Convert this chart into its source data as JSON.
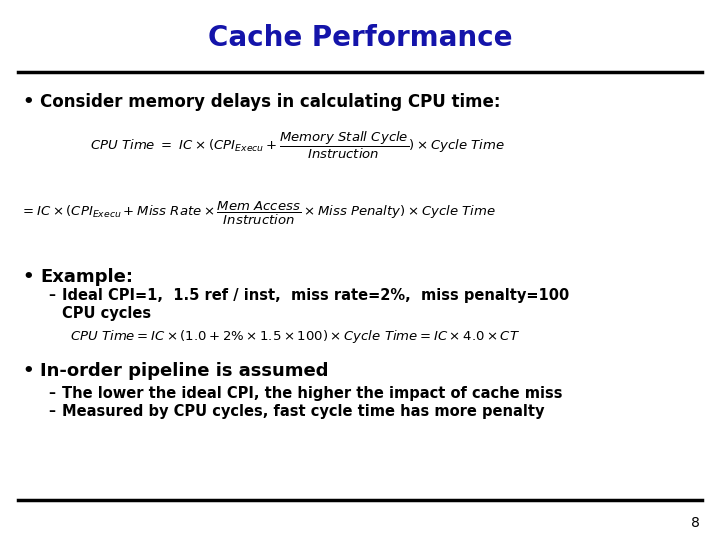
{
  "title": "Cache Performance",
  "title_color": "#1414aa",
  "title_fontsize": 20,
  "bg_color": "#ffffff",
  "bullet1": "Consider memory delays in calculating CPU time:",
  "bullet1_fontsize": 12,
  "bullet2": "Example:",
  "bullet2_fontsize": 12,
  "bullet3": "In-order pipeline is assumed",
  "bullet3_fontsize": 13,
  "sub1_line1": "Ideal CPI=1,  1.5 ref / inst,  miss rate=2%,  miss penalty=100",
  "sub1_line2": "CPU cycles",
  "sub2": "The lower the ideal CPI, the higher the impact of cache miss",
  "sub3": "Measured by CPU cycles, fast cycle time has more penalty",
  "page_num": "8",
  "line_color": "#000000",
  "eq_fontsize": 9.5
}
